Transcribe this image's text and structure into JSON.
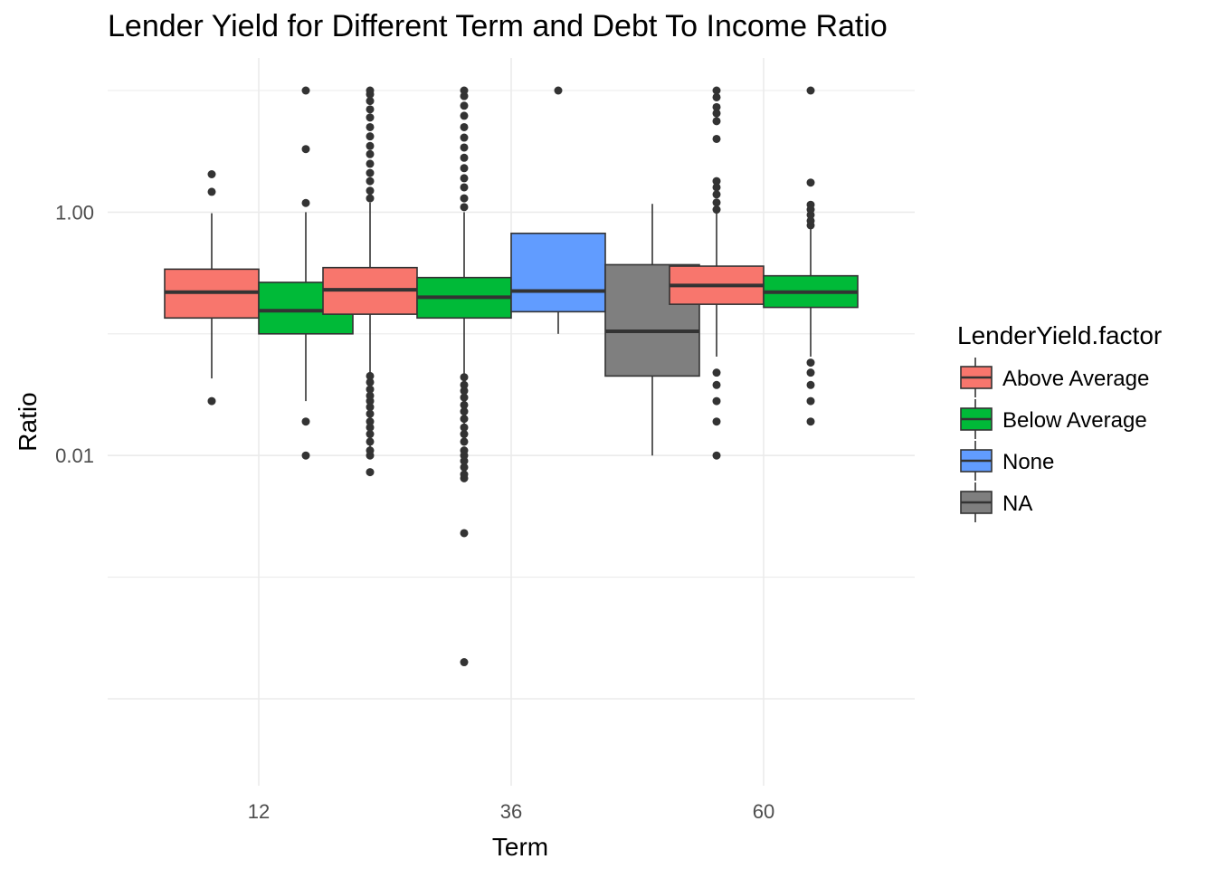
{
  "chart_data": {
    "type": "box",
    "title": "Lender Yield for Different Term and Debt To Income Ratio",
    "xlabel": "Term",
    "ylabel": "Ratio",
    "y_scale": "log10",
    "y_ticks": [
      {
        "value": 1.0,
        "label": "1.00"
      },
      {
        "value": 0.01,
        "label": "0.01"
      }
    ],
    "ylim": [
      0.0001,
      10
    ],
    "grid": true,
    "categories": [
      "12",
      "36",
      "60"
    ],
    "legend": {
      "title": "LenderYield.factor",
      "placement": "right",
      "entries": [
        "Above Average",
        "Below Average",
        "None",
        "NA"
      ]
    },
    "colors": {
      "Above Average": "#F8766D",
      "Below Average": "#00BA38",
      "None": "#619CFF",
      "NA": "#7F7F7F"
    },
    "boxes": [
      {
        "term": "12",
        "group": "Above Average",
        "min": 0.043,
        "q1": 0.135,
        "median": 0.22,
        "q3": 0.34,
        "max": 0.98,
        "outliers": [
          0.028,
          1.47,
          2.05
        ]
      },
      {
        "term": "12",
        "group": "Below Average",
        "min": 0.028,
        "q1": 0.1,
        "median": 0.155,
        "q3": 0.265,
        "max": 1.0,
        "outliers": [
          0.01,
          0.019,
          1.19,
          3.3,
          10.0
        ]
      },
      {
        "term": "36",
        "group": "Above Average",
        "min": 0.01,
        "q1": 0.145,
        "median": 0.23,
        "q3": 0.35,
        "max": 1.2,
        "outliers": [
          0.0073,
          0.01,
          0.011,
          0.013,
          0.015,
          0.017,
          0.019,
          0.022,
          0.025,
          0.028,
          0.031,
          0.035,
          0.04,
          0.045,
          1.3,
          1.5,
          1.8,
          2.1,
          2.5,
          3.0,
          3.5,
          4.2,
          5.0,
          6.0,
          7.0,
          8.2,
          9.3,
          10.0
        ]
      },
      {
        "term": "36",
        "group": "Below Average",
        "min": 0.012,
        "q1": 0.135,
        "median": 0.2,
        "q3": 0.29,
        "max": 1.0,
        "outliers": [
          0.0002,
          0.0023,
          0.0065,
          0.007,
          0.008,
          0.009,
          0.01,
          0.011,
          0.013,
          0.015,
          0.017,
          0.02,
          0.023,
          0.026,
          0.03,
          0.034,
          0.038,
          0.044,
          1.1,
          1.3,
          1.6,
          1.9,
          2.3,
          2.8,
          3.4,
          4.1,
          5.0,
          6.2,
          7.5,
          9.0,
          10.0
        ]
      },
      {
        "term": "36",
        "group": "None",
        "min": 0.1,
        "q1": 0.152,
        "median": 0.225,
        "q3": 0.67,
        "max": 0.67,
        "outliers": [
          10.0
        ]
      },
      {
        "term": "36",
        "group": "NA",
        "min": 0.01,
        "q1": 0.045,
        "median": 0.105,
        "q3": 0.37,
        "max": 1.17,
        "outliers": []
      },
      {
        "term": "60",
        "group": "Above Average",
        "min": 0.065,
        "q1": 0.175,
        "median": 0.25,
        "q3": 0.36,
        "max": 0.98,
        "outliers": [
          0.01,
          0.019,
          0.028,
          0.038,
          0.048,
          1.05,
          1.2,
          1.4,
          1.6,
          1.8,
          4.0,
          5.6,
          6.5,
          7.3,
          8.8,
          10.0
        ]
      },
      {
        "term": "60",
        "group": "Below Average",
        "min": 0.065,
        "q1": 0.165,
        "median": 0.22,
        "q3": 0.3,
        "max": 0.75,
        "outliers": [
          0.019,
          0.028,
          0.038,
          0.048,
          0.058,
          0.78,
          0.85,
          0.95,
          1.05,
          1.15,
          1.75,
          10.0
        ]
      }
    ]
  }
}
